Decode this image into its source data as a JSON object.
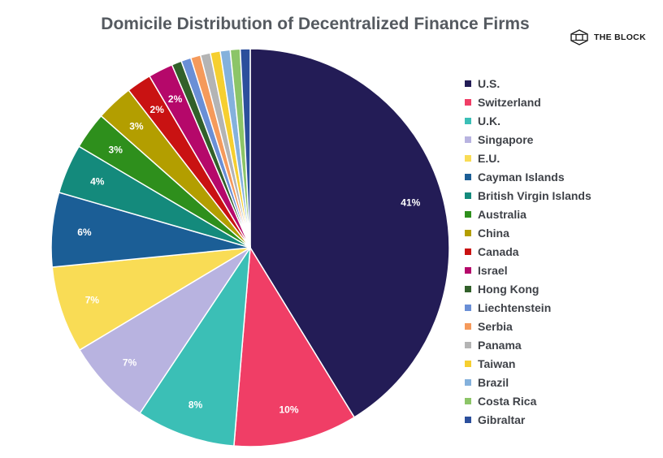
{
  "title": "Domicile Distribution of Decentralized Finance Firms",
  "brand": {
    "name": "THE BLOCK",
    "icon": "the-block-cube-logo"
  },
  "chart_data": {
    "type": "pie",
    "title": "Domicile Distribution of Decentralized Finance Firms",
    "start_angle": "12 o'clock, clockwise",
    "slices": [
      {
        "name": "U.S.",
        "value": 41,
        "label": "41%",
        "color": "#231c56"
      },
      {
        "name": "Switzerland",
        "value": 10,
        "label": "10%",
        "color": "#f03e66"
      },
      {
        "name": "U.K.",
        "value": 8,
        "label": "8%",
        "color": "#3bbfb6"
      },
      {
        "name": "Singapore",
        "value": 7,
        "label": "7%",
        "color": "#b8b3e0"
      },
      {
        "name": "E.U.",
        "value": 7,
        "label": "7%",
        "color": "#f9dc55"
      },
      {
        "name": "Cayman Islands",
        "value": 6,
        "label": "6%",
        "color": "#1b5e96"
      },
      {
        "name": "British Virgin Islands",
        "value": 4,
        "label": "4%",
        "color": "#148a7c"
      },
      {
        "name": "Australia",
        "value": 3,
        "label": "3%",
        "color": "#2e8f1c"
      },
      {
        "name": "China",
        "value": 3,
        "label": "3%",
        "color": "#b39e00"
      },
      {
        "name": "Canada",
        "value": 2,
        "label": "2%",
        "color": "#c91212"
      },
      {
        "name": "Israel",
        "value": 2,
        "label": "2%",
        "color": "#b5086a"
      },
      {
        "name": "Hong Kong",
        "value": 0.8,
        "label": "",
        "color": "#32602a"
      },
      {
        "name": "Liechtenstein",
        "value": 0.8,
        "label": "",
        "color": "#6a8fd6"
      },
      {
        "name": "Serbia",
        "value": 0.8,
        "label": "",
        "color": "#f59a5b"
      },
      {
        "name": "Panama",
        "value": 0.8,
        "label": "",
        "color": "#b4b4b4"
      },
      {
        "name": "Taiwan",
        "value": 0.8,
        "label": "",
        "color": "#f6cf30"
      },
      {
        "name": "Brazil",
        "value": 0.8,
        "label": "",
        "color": "#84b1dc"
      },
      {
        "name": "Costa Rica",
        "value": 0.8,
        "label": "",
        "color": "#8cc568"
      },
      {
        "name": "Gibraltar",
        "value": 0.8,
        "label": "",
        "color": "#2c4f9c"
      }
    ],
    "legend": "right"
  }
}
